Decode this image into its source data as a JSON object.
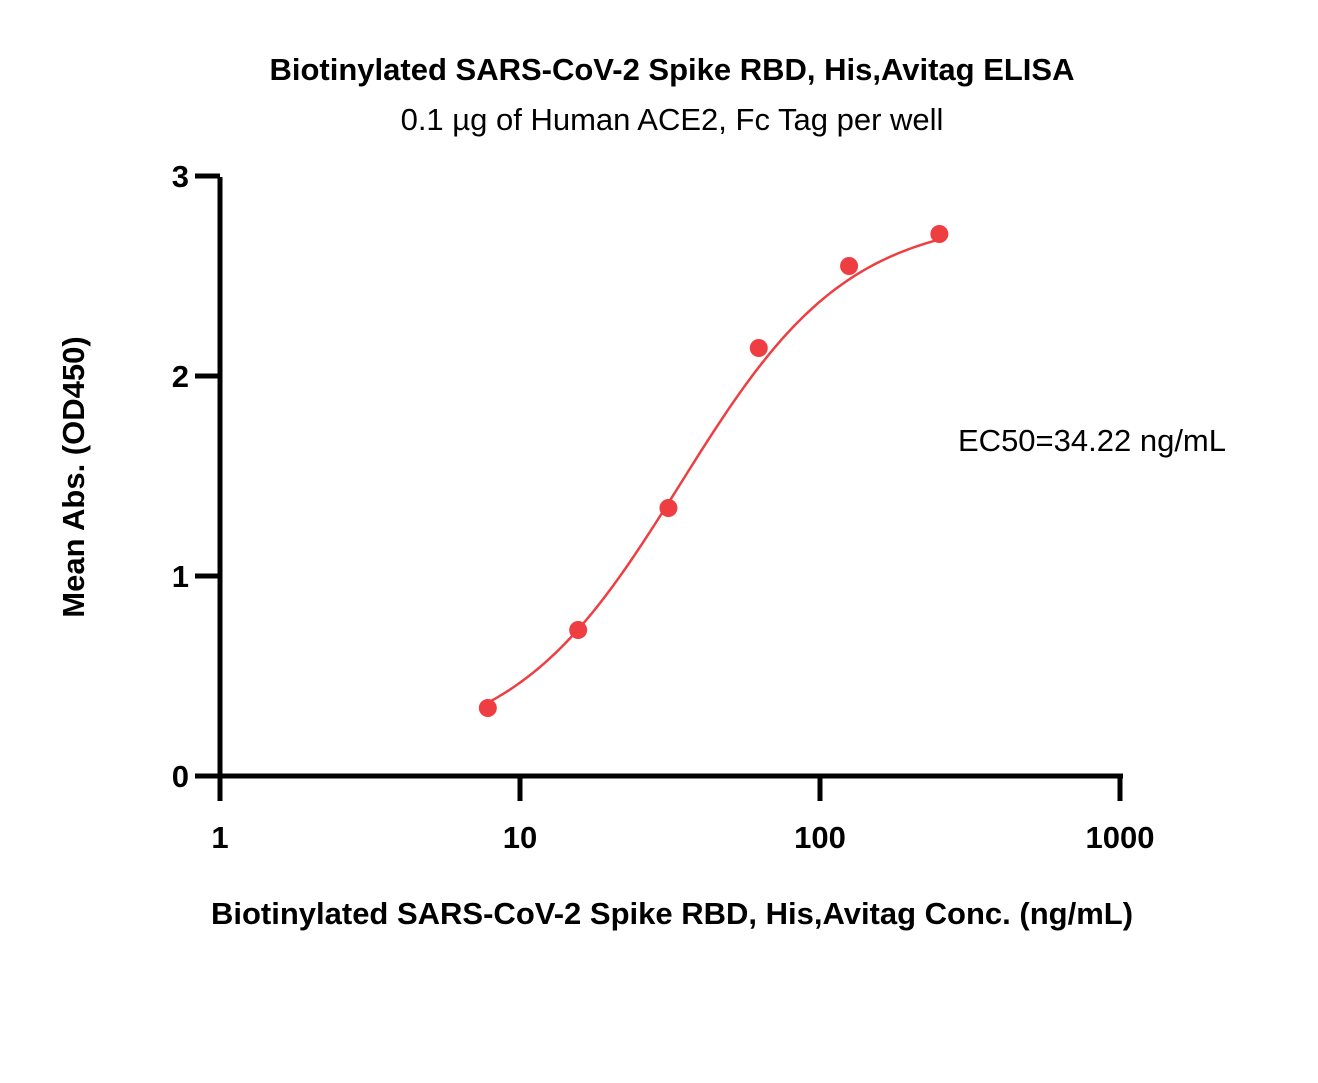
{
  "chart_data": {
    "type": "scatter",
    "title": "Biotinylated SARS-CoV-2 Spike RBD, His,Avitag ELISA",
    "subtitle": "0.1 µg of Human ACE2, Fc Tag per well",
    "xlabel": "Biotinylated SARS-CoV-2 Spike RBD, His,Avitag Conc. (ng/mL)",
    "ylabel": "Mean Abs. (OD450)",
    "x_scale": "log10",
    "xlim": [
      1,
      1000
    ],
    "ylim": [
      0,
      3
    ],
    "x_ticks": [
      "1",
      "10",
      "100",
      "1000"
    ],
    "y_ticks": [
      "0",
      "1",
      "2",
      "3"
    ],
    "grid": false,
    "legend": "none",
    "annotation": "EC50=34.22 ng/mL",
    "series": [
      {
        "color": "#ef3e42",
        "fit": "4PL sigmoid curve",
        "x": [
          7.8125,
          15.625,
          31.25,
          62.5,
          125,
          250
        ],
        "y": [
          0.34,
          0.73,
          1.34,
          2.14,
          2.55,
          2.71
        ]
      }
    ]
  }
}
